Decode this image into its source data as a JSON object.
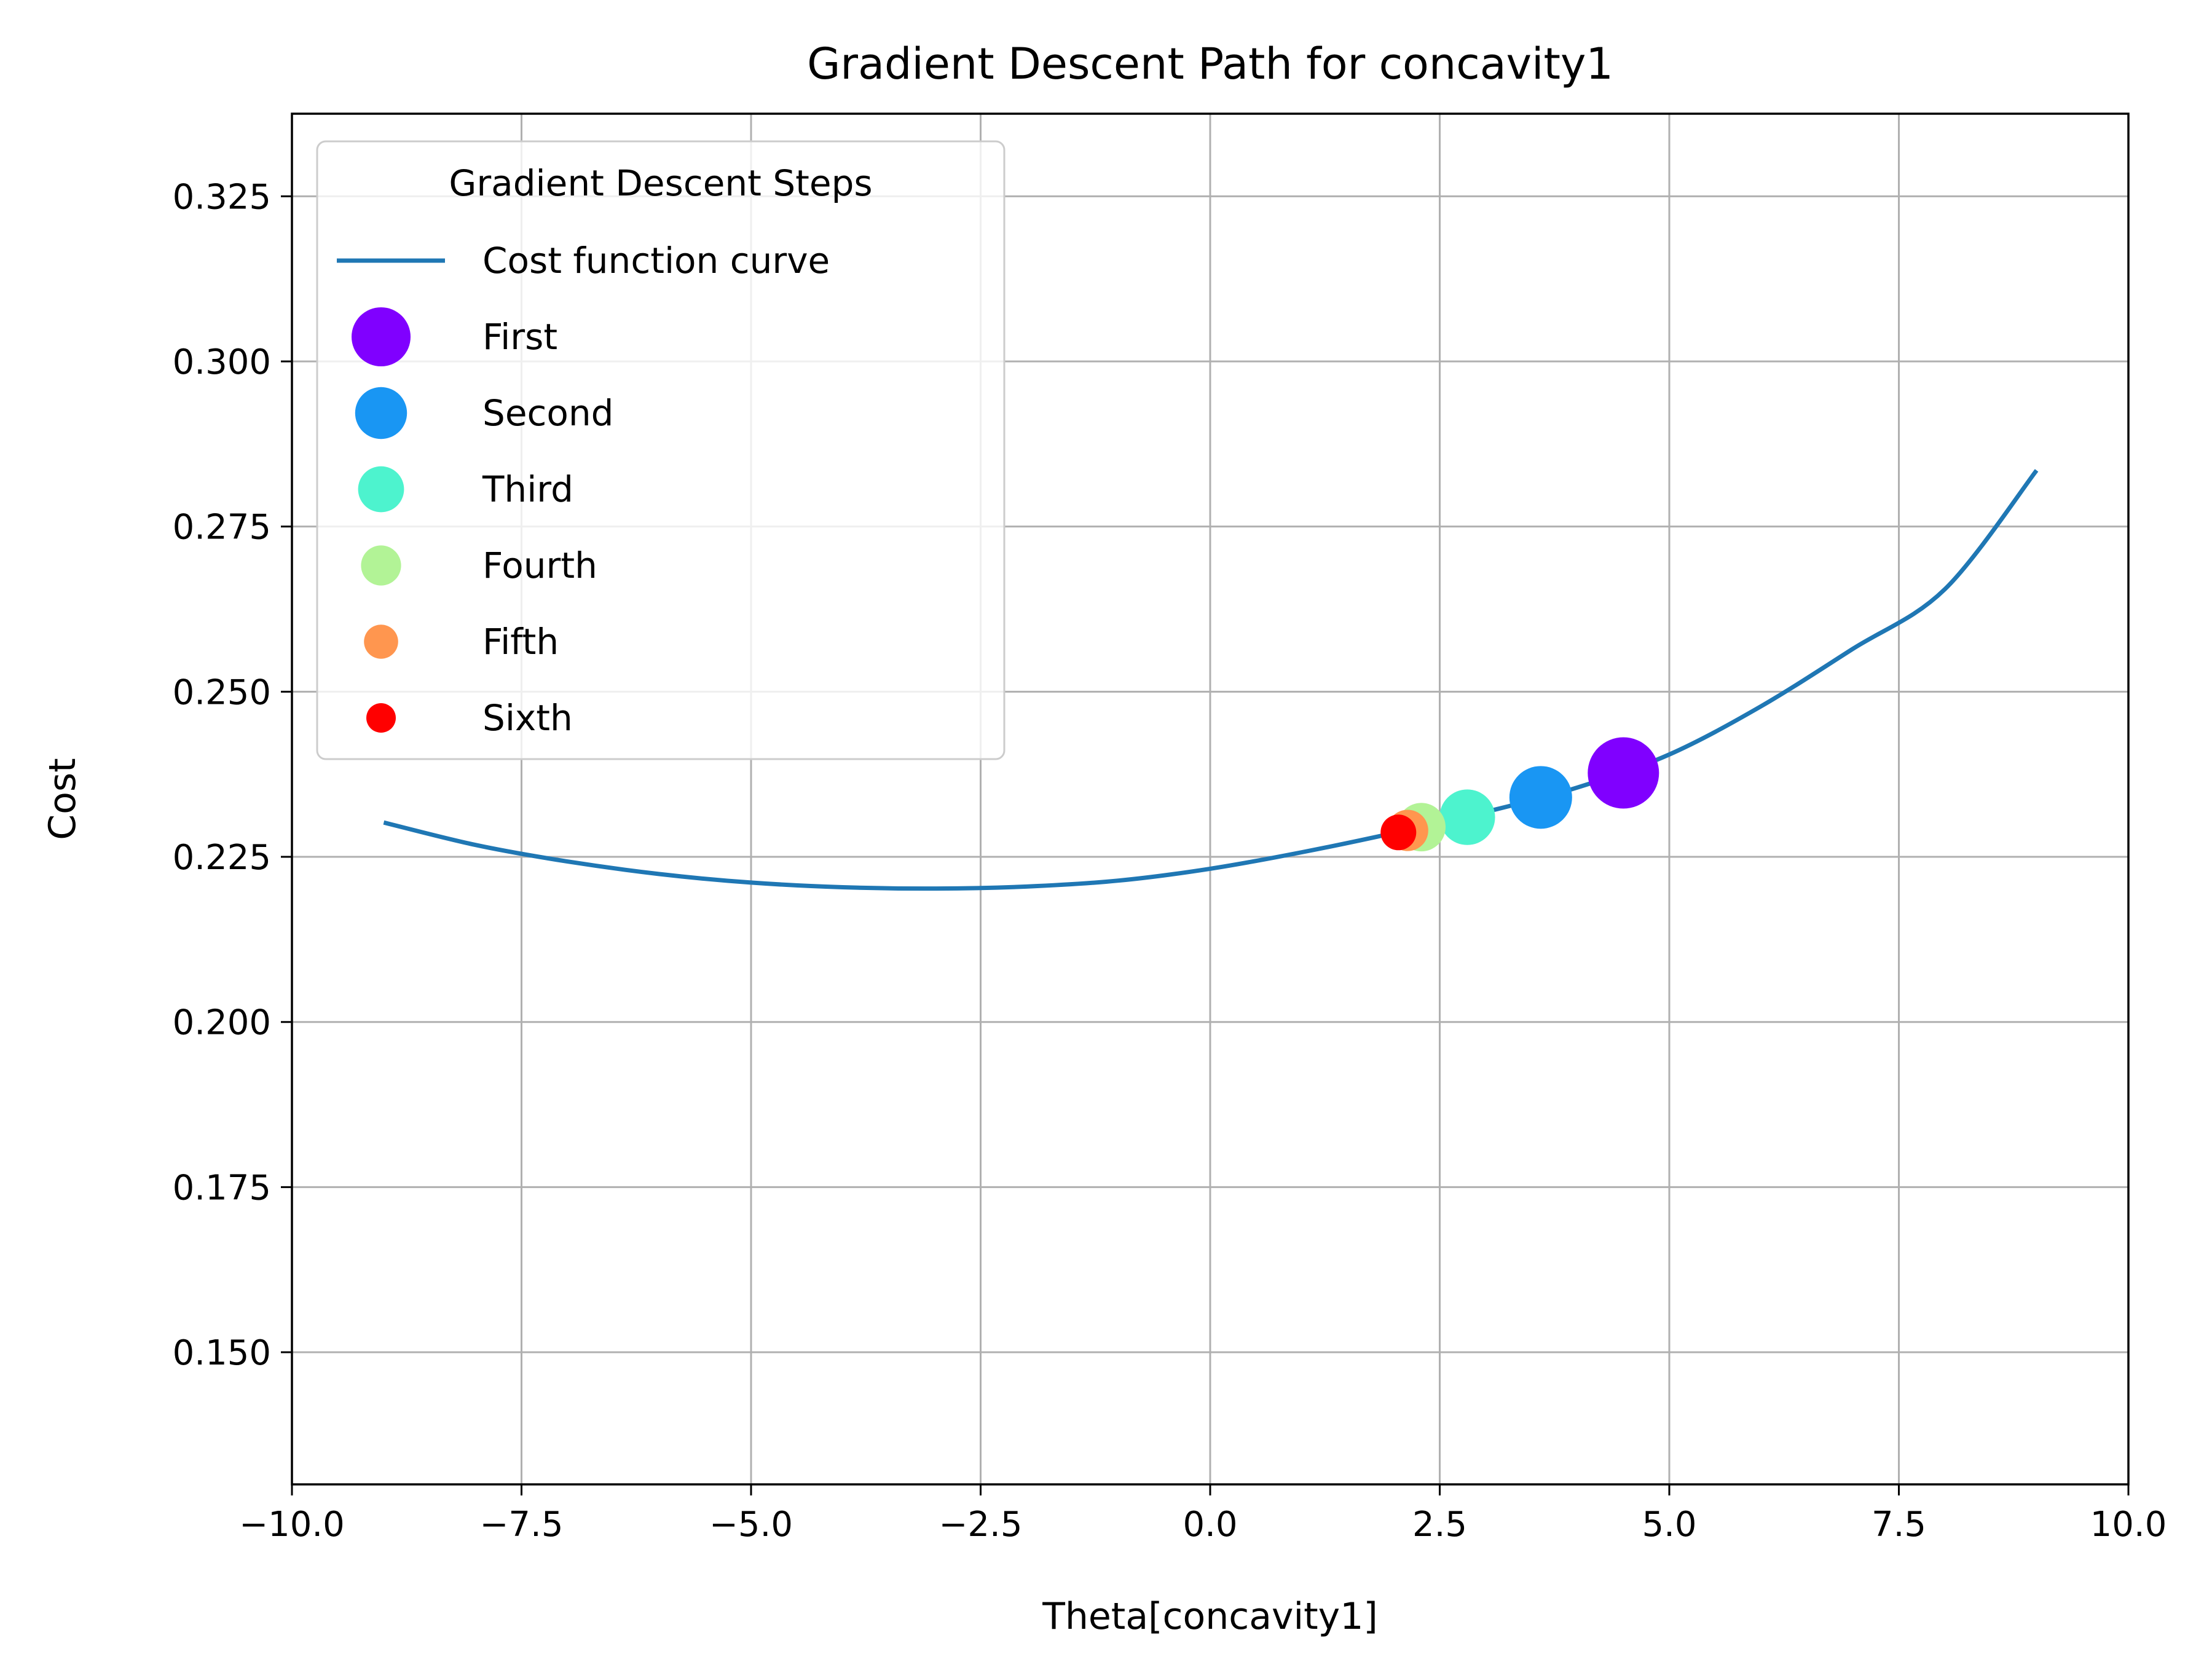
{
  "chart_data": {
    "type": "scatter",
    "title": "Gradient Descent Path for concavity1",
    "xlabel": "Theta[concavity1]",
    "ylabel": "Cost",
    "xlim": [
      -10.0,
      10.0
    ],
    "ylim": [
      0.13,
      0.3375
    ],
    "xticks": [
      -10.0,
      -7.5,
      -5.0,
      -2.5,
      0.0,
      2.5,
      5.0,
      7.5,
      10.0
    ],
    "xtick_labels": [
      "−10.0",
      "−7.5",
      "−5.0",
      "−2.5",
      "0.0",
      "2.5",
      "5.0",
      "7.5",
      "10.0"
    ],
    "yticks": [
      0.15,
      0.175,
      0.2,
      0.225,
      0.25,
      0.275,
      0.3,
      0.325
    ],
    "ytick_labels": [
      "0.150",
      "0.175",
      "0.200",
      "0.225",
      "0.250",
      "0.275",
      "0.300",
      "0.325"
    ],
    "grid": true,
    "legend": {
      "title": "Gradient Descent Steps",
      "placement": "top-left"
    },
    "curve": {
      "name": "Cost function curve",
      "color": "#1f77b4",
      "x": [
        -9.0,
        -8.0,
        -7.0,
        -6.0,
        -5.0,
        -4.0,
        -3.0,
        -2.0,
        -1.0,
        0.0,
        1.0,
        2.0,
        3.0,
        4.0,
        5.0,
        6.0,
        7.0,
        8.0,
        9.0
      ],
      "y": [
        0.2302,
        0.2268,
        0.2243,
        0.2224,
        0.2211,
        0.2204,
        0.2202,
        0.2205,
        0.2214,
        0.2232,
        0.2257,
        0.2286,
        0.2318,
        0.2355,
        0.2405,
        0.2478,
        0.2565,
        0.2655,
        0.2835
      ]
    },
    "steps": [
      {
        "name": "First",
        "x": 4.5,
        "y": 0.2377,
        "color": "#8000ff",
        "size": 1.0
      },
      {
        "name": "Second",
        "x": 3.6,
        "y": 0.234,
        "color": "#1996f3",
        "size": 0.88
      },
      {
        "name": "Third",
        "x": 2.8,
        "y": 0.231,
        "color": "#4df3ce",
        "size": 0.78
      },
      {
        "name": "Fourth",
        "x": 2.3,
        "y": 0.2295,
        "color": "#b2f396",
        "size": 0.68
      },
      {
        "name": "Fifth",
        "x": 2.15,
        "y": 0.229,
        "color": "#ff964f",
        "size": 0.58
      },
      {
        "name": "Sixth",
        "x": 2.05,
        "y": 0.2287,
        "color": "#ff0000",
        "size": 0.5
      }
    ]
  }
}
